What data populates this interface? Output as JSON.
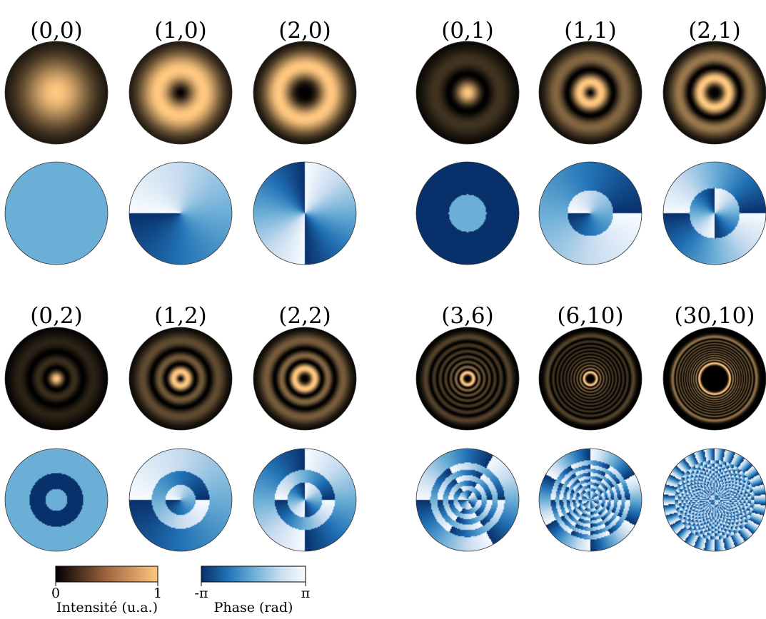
{
  "figure": {
    "modes": [
      {
        "label": "(0,0)",
        "l": 0,
        "p": 0
      },
      {
        "label": "(1,0)",
        "l": 1,
        "p": 0
      },
      {
        "label": "(2,0)",
        "l": 2,
        "p": 0
      },
      {
        "label": "(0,1)",
        "l": 0,
        "p": 1
      },
      {
        "label": "(1,1)",
        "l": 1,
        "p": 1
      },
      {
        "label": "(2,1)",
        "l": 2,
        "p": 1
      },
      {
        "label": "(0,2)",
        "l": 0,
        "p": 2
      },
      {
        "label": "(1,2)",
        "l": 1,
        "p": 2
      },
      {
        "label": "(2,2)",
        "l": 2,
        "p": 2
      },
      {
        "label": "(3,6)",
        "l": 3,
        "p": 6
      },
      {
        "label": "(6,10)",
        "l": 6,
        "p": 10
      },
      {
        "label": "(30,10)",
        "l": 30,
        "p": 10
      }
    ],
    "colorbars": {
      "intensity": {
        "label": "Intensité (u.a.)",
        "min_label": "0",
        "max_label": "1",
        "colormap": "copper",
        "range": [
          0,
          1
        ]
      },
      "phase": {
        "label": "Phase (rad)",
        "min_label": "-π",
        "max_label": "π",
        "colormap": "blues",
        "range": [
          -3.1416,
          3.1416
        ]
      }
    },
    "colors": {
      "copper_dark": "#000000",
      "copper_light": "#ffc77f",
      "blue_dark": "#08306b",
      "blue_mid": "#6baed6",
      "blue_light": "#f7fbff"
    }
  }
}
